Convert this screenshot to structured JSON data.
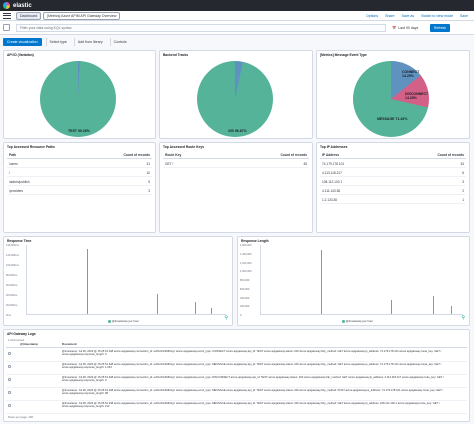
{
  "app": {
    "logo_text": "elastic"
  },
  "breadcrumbs": [
    "Dashboard",
    "[Metrics] Azure APIM API Gateway Overview"
  ],
  "top_menu": [
    "Options",
    "Share",
    "Save as",
    "Switch to view mode",
    "Save"
  ],
  "query": {
    "placeholder": "Filter your data using KQL syntax",
    "time": "Last 90 days",
    "refresh_label": "Refresh"
  },
  "toolbar": {
    "create_label": "Create visualization",
    "select_type": "Select type",
    "add_library": "Add from library",
    "controls": "Controls"
  },
  "panels": {
    "p1": {
      "title": "API ID (Variation)",
      "slice_label": "TEST",
      "slice_pct": "99.26%",
      "share": 99.26
    },
    "p2": {
      "title": "Backend Tracks",
      "slice_label": "200",
      "slice_pct": "96.67%",
      "share": 96.67
    },
    "p3": {
      "title": "[Metrics] Message Event Type",
      "slices": [
        {
          "label": "CONNECT",
          "pct": "14.29%",
          "value": 14.29,
          "color": "#6092c0"
        },
        {
          "label": "DISCONNECT",
          "pct": "14.29%",
          "value": 14.29,
          "color": "#d36086"
        },
        {
          "label": "MESSAGE",
          "pct": "71.43%",
          "value": 71.43,
          "color": "#54b399"
        }
      ]
    },
    "t1": {
      "title": "Top Accessed Resource Paths",
      "col1": "Path",
      "col2": "Count of records",
      "rows": [
        {
          "a": "/users",
          "b": "31"
        },
        {
          "a": "/",
          "b": "10"
        },
        {
          "a": "/admin/publish",
          "b": "5"
        },
        {
          "a": "/providers",
          "b": "3"
        }
      ]
    },
    "t2": {
      "title": "Top Accessed Route Keys",
      "col1": "Route Key",
      "col2": "Count of records",
      "rows": [
        {
          "a": "GET /",
          "b": "45"
        }
      ]
    },
    "t3": {
      "title": "Top IP Addresses",
      "col1": "IP Address",
      "col2": "Count of records",
      "rows": [
        {
          "a": "74.179.178.101",
          "b": "34"
        },
        {
          "a": "4.113.118.217",
          "b": "6"
        },
        {
          "a": "108.112.102.1",
          "b": "3"
        },
        {
          "a": "4.111.143.36",
          "b": "2"
        },
        {
          "a": "1.2.133.36",
          "b": "1"
        }
      ]
    },
    "chart1": {
      "title": "Response Time",
      "legend": "@timestamp per hour",
      "yticks": [
        "140,000ms",
        "120,000ms",
        "100,000ms",
        "80,000ms",
        "60,000ms",
        "40,000ms",
        "20,000ms",
        "0ms"
      ]
    },
    "chart2": {
      "title": "Response Length",
      "legend": "@timestamp per hour",
      "yticks": [
        "1,600,000",
        "1,400,000",
        "1,200,000",
        "1,000,000",
        "800,000",
        "600,000",
        "400,000",
        "200,000",
        "0"
      ]
    },
    "docs": {
      "title": "API Gateway Logs",
      "hits": "1 field sorted",
      "col_time": "@timestamp",
      "col_doc": "Document",
      "rows": [
        "@timestamp: Jul 28, 2023 @ 15:25:51.348  azure.apigateway.connection_id: ecRsnfl1nIMFHg=  azure.apigateway.event_type: CONNECT  azure.apigateway.api_id: TEST  azure.apigateway.status: 200  azure.apigateway.http_method: GET  azure.apigateway.ip_address: 74.179.178.101  azure.apigateway.route_key: GET /  azure.apigateway.response_length: 0",
        "@timestamp: Jul 28, 2023 @ 15:25:51.348  azure.apigateway.connection_id: ecRsnfl1nIMFHg=  azure.apigateway.event_type: MESSAGE  azure.apigateway.api_id: TEST  azure.apigateway.status: 200  azure.apigateway.http_method: GET  azure.apigateway.ip_address: 74.179.178.101  azure.apigateway.route_key: GET /  azure.apigateway.response_length: 1,034",
        "@timestamp: Jul 28, 2023 @ 15:25:51.348  azure.apigateway.connection_id: ecRsnfl1nIMFHg=  azure.apigateway.event_type: DISCONNECT  azure.apigateway.api_id: TEST  azure.apigateway.status: 200  azure.apigateway.http_method: GET  azure.apigateway.ip_address: 4.113.118.217  azure.apigateway.route_key: GET /  azure.apigateway.response_length: 0",
        "@timestamp: Jul 28, 2023 @ 15:25:51.348  azure.apigateway.connection_id: ecRsnfl1nIMFHg=  azure.apigateway.event_type: MESSAGE  azure.apigateway.api_id: TEST  azure.apigateway.status: 200  azure.apigateway.http_method: POST  azure.apigateway.ip_address: 74.179.178.101  azure.apigateway.route_key: GET /  azure.apigateway.response_length: 98",
        "@timestamp: Jul 28, 2023 @ 15:25:51.348  azure.apigateway.connection_id: ecRsnfl1nIMFHg=  azure.apigateway.event_type: MESSAGE  azure.apigateway.api_id: TEST  azure.apigateway.status: 200  azure.apigateway.http_method: GET  azure.apigateway.ip_address: 108.112.102.1  azure.apigateway.route_key: GET /  azure.apigateway.response_length: 212"
      ],
      "footer": "Rows per page: 100"
    }
  },
  "colors": {
    "accent": "#0077cc",
    "pie_green": "#54b399",
    "pie_blue": "#6092c0",
    "pie_pink": "#d36086"
  }
}
